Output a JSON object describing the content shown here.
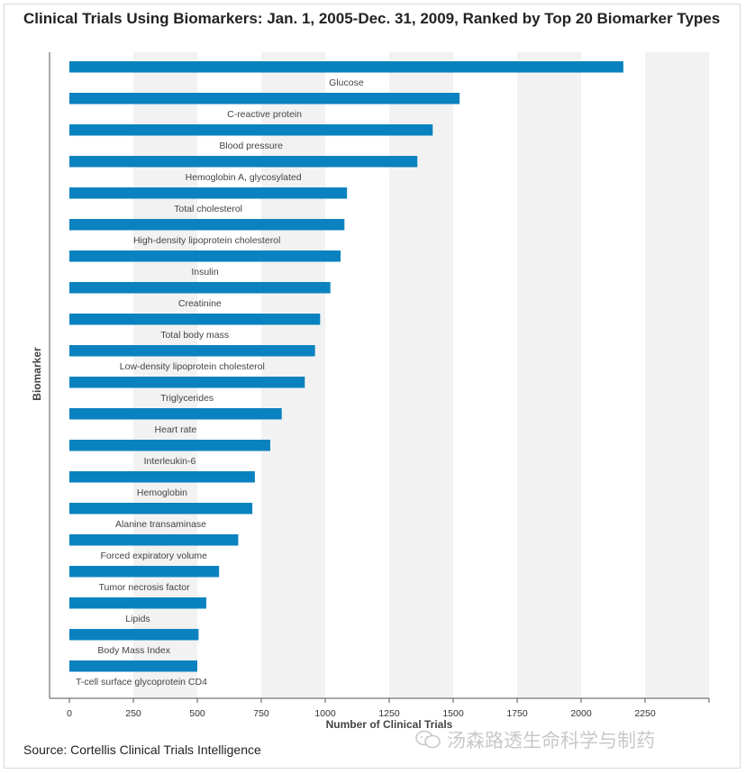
{
  "title": "Clinical Trials Using Biomarkers: Jan. 1, 2005-Dec. 31, 2009, Ranked by Top 20 Biomarker Types",
  "source": "Source: Cortellis Clinical Trials Intelligence",
  "watermark": "汤森路透生命科学与制药",
  "chart_data": {
    "type": "bar",
    "orientation": "horizontal",
    "title": "Clinical Trials Using Biomarkers: Jan. 1, 2005-Dec. 31, 2009, Ranked by Top 20 Biomarker Types",
    "xlabel": "Number of Clinical Trials",
    "ylabel": "Biomarker",
    "xlim": [
      0,
      2500
    ],
    "xticks": [
      0,
      250,
      500,
      750,
      1000,
      1250,
      1500,
      1750,
      2000,
      2250
    ],
    "grid": "alternating vertical bands",
    "bar_color": "#0a82c0",
    "band_color": "#f2f2f2",
    "categories": [
      "Glucose",
      "C-reactive protein",
      "Blood pressure",
      "Hemoglobin A, glycosylated",
      "Total cholesterol",
      "High-density lipoprotein cholesterol",
      "Insulin",
      "Creatinine",
      "Total body mass",
      "Low-density lipoprotein cholesterol",
      "Triglycerides",
      "Heart rate",
      "Interleukin-6",
      "Hemoglobin",
      "Alanine transaminase",
      "Forced expiratory volume",
      "Tumor necrosis factor",
      "Lipids",
      "Body Mass Index",
      "T-cell surface glycoprotein CD4"
    ],
    "values": [
      2165,
      1525,
      1420,
      1360,
      1085,
      1075,
      1060,
      1020,
      980,
      960,
      920,
      830,
      785,
      725,
      715,
      660,
      585,
      535,
      505,
      500
    ]
  }
}
